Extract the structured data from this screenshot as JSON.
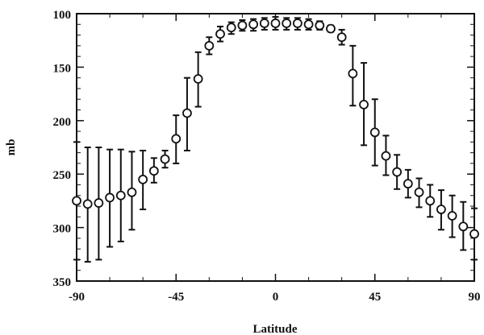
{
  "chart_data": {
    "type": "scatter",
    "title": "",
    "xlabel": "Latitude",
    "ylabel": "mb",
    "xlim": [
      -90,
      90
    ],
    "ylim": [
      100,
      350
    ],
    "y_inverted": true,
    "grid": false,
    "legend": "none",
    "x_ticks": [
      -90,
      -45,
      0,
      45,
      90
    ],
    "y_ticks": [
      100,
      150,
      200,
      250,
      300,
      350
    ],
    "x_tick_labels": [
      "-90",
      "-45",
      "0",
      "45",
      "90"
    ],
    "y_tick_labels": [
      "100",
      "150",
      "200",
      "250",
      "300",
      "350"
    ],
    "series": [
      {
        "marker": "open-circle",
        "color": "#111111",
        "points": [
          {
            "x": -90,
            "y": 275,
            "lo": 220,
            "hi": 330
          },
          {
            "x": -85,
            "y": 278,
            "lo": 225,
            "hi": 332
          },
          {
            "x": -80,
            "y": 277,
            "lo": 225,
            "hi": 330
          },
          {
            "x": -75,
            "y": 272,
            "lo": 227,
            "hi": 318
          },
          {
            "x": -70,
            "y": 270,
            "lo": 227,
            "hi": 313
          },
          {
            "x": -65,
            "y": 267,
            "lo": 229,
            "hi": 302
          },
          {
            "x": -60,
            "y": 255,
            "lo": 228,
            "hi": 283
          },
          {
            "x": -55,
            "y": 247,
            "lo": 235,
            "hi": 258
          },
          {
            "x": -50,
            "y": 236,
            "lo": 228,
            "hi": 244
          },
          {
            "x": -45,
            "y": 217,
            "lo": 195,
            "hi": 240
          },
          {
            "x": -40,
            "y": 193,
            "lo": 160,
            "hi": 228
          },
          {
            "x": -35,
            "y": 161,
            "lo": 136,
            "hi": 187
          },
          {
            "x": -30,
            "y": 130,
            "lo": 122,
            "hi": 138
          },
          {
            "x": -25,
            "y": 119,
            "lo": 112,
            "hi": 126
          },
          {
            "x": -20,
            "y": 113,
            "lo": 108,
            "hi": 119
          },
          {
            "x": -15,
            "y": 111,
            "lo": 106,
            "hi": 116
          },
          {
            "x": -10,
            "y": 110,
            "lo": 105,
            "hi": 116
          },
          {
            "x": -5,
            "y": 109,
            "lo": 104,
            "hi": 115
          },
          {
            "x": 0,
            "y": 109,
            "lo": 103,
            "hi": 115
          },
          {
            "x": 5,
            "y": 109,
            "lo": 104,
            "hi": 115
          },
          {
            "x": 10,
            "y": 109,
            "lo": 104,
            "hi": 115
          },
          {
            "x": 15,
            "y": 110,
            "lo": 105,
            "hi": 115
          },
          {
            "x": 20,
            "y": 111,
            "lo": 107,
            "hi": 115
          },
          {
            "x": 25,
            "y": 114,
            "lo": 111,
            "hi": 117
          },
          {
            "x": 30,
            "y": 122,
            "lo": 115,
            "hi": 129
          },
          {
            "x": 35,
            "y": 156,
            "lo": 130,
            "hi": 186
          },
          {
            "x": 40,
            "y": 185,
            "lo": 146,
            "hi": 223
          },
          {
            "x": 45,
            "y": 211,
            "lo": 180,
            "hi": 242
          },
          {
            "x": 50,
            "y": 233,
            "lo": 214,
            "hi": 251
          },
          {
            "x": 55,
            "y": 248,
            "lo": 232,
            "hi": 264
          },
          {
            "x": 60,
            "y": 259,
            "lo": 246,
            "hi": 272
          },
          {
            "x": 65,
            "y": 267,
            "lo": 254,
            "hi": 281
          },
          {
            "x": 70,
            "y": 275,
            "lo": 260,
            "hi": 290
          },
          {
            "x": 75,
            "y": 283,
            "lo": 265,
            "hi": 302
          },
          {
            "x": 80,
            "y": 289,
            "lo": 270,
            "hi": 309
          },
          {
            "x": 85,
            "y": 299,
            "lo": 276,
            "hi": 321
          },
          {
            "x": 90,
            "y": 306,
            "lo": 282,
            "hi": 330
          }
        ]
      }
    ]
  }
}
